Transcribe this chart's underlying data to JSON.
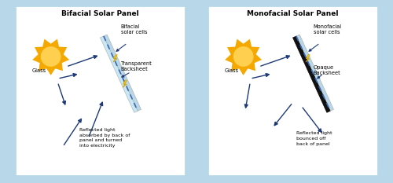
{
  "bg_outer": "#b8d8ea",
  "bg_inner": "#ffffff",
  "sun_color": "#f5a800",
  "sun_highlight": "#ffd050",
  "arrow_color": "#1e3a78",
  "glass_color": "#b8d8e8",
  "transparent_bs_color": "#c8e8f8",
  "opaque_bs_color": "#111111",
  "dashed_color": "#4466aa",
  "lightning_color": "#f5c800",
  "title_left": "Bifacial Solar Panel",
  "title_right": "Monofacial Solar Panel",
  "label_bifacial_cells": "Bifacial\nsolar cells",
  "label_transparent_bs": "Transparent\nBacksheet",
  "label_glass_left": "Glass",
  "label_reflected_left": "Reflected light\nabsorbed by back of\npanel and turned\ninto electricity",
  "label_monofacial_cells": "Monofacial\nsolar cells",
  "label_opaque_bs": "Opaque\nBacksheet",
  "label_glass_right": "Glass",
  "label_reflected_right": "Reflected light\nbounced off\nback of panel"
}
